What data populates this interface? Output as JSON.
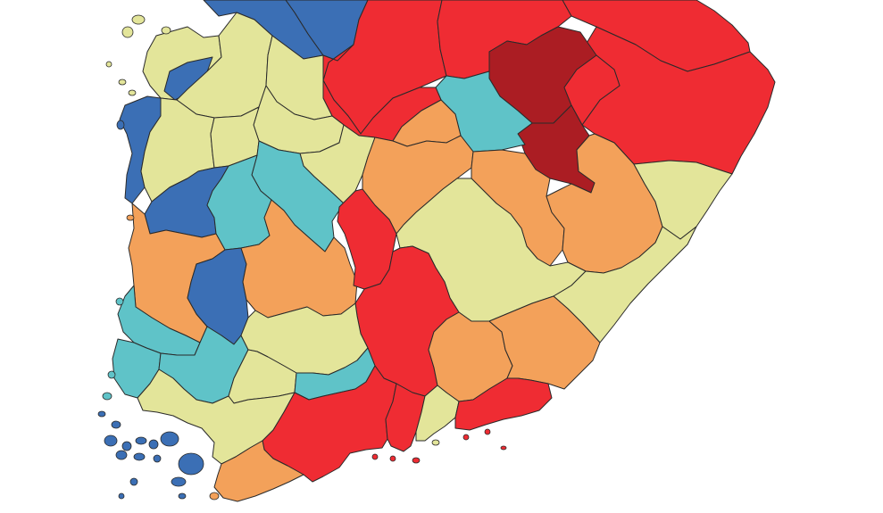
{
  "map": {
    "palette": {
      "dark_red": "#ab1d23",
      "red": "#ef2c33",
      "orange": "#f3a15a",
      "khaki": "#e3e59a",
      "teal": "#5fc3c8",
      "blue": "#3b6fb5"
    },
    "border_color": "#2a2a2a",
    "background": "#ffffff"
  }
}
